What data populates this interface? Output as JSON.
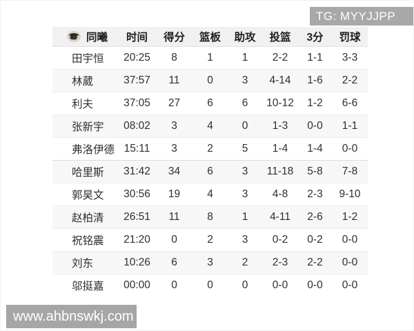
{
  "watermarks": {
    "top_right": "TG: MYYJJPP",
    "bottom_left": "www.ahbnswkj.com"
  },
  "table": {
    "team_label": "同曦",
    "team_logo": "monkey-king-head-logo",
    "columns": [
      "时间",
      "得分",
      "篮板",
      "助攻",
      "投篮",
      "3分",
      "罚球"
    ],
    "rows": [
      [
        "田宇恒",
        "20:25",
        "8",
        "1",
        "1",
        "2-2",
        "1-1",
        "3-3"
      ],
      [
        "林葳",
        "37:57",
        "11",
        "0",
        "3",
        "4-14",
        "1-6",
        "2-2"
      ],
      [
        "利夫",
        "37:05",
        "27",
        "6",
        "6",
        "10-12",
        "1-2",
        "6-6"
      ],
      [
        "张新宇",
        "08:02",
        "3",
        "4",
        "0",
        "1-3",
        "0-0",
        "1-1"
      ],
      [
        "弗洛伊德",
        "15:11",
        "3",
        "2",
        "5",
        "1-4",
        "1-4",
        "0-0"
      ],
      [
        "哈里斯",
        "31:42",
        "34",
        "6",
        "3",
        "11-18",
        "5-8",
        "7-8"
      ],
      [
        "郭昊文",
        "30:56",
        "19",
        "4",
        "3",
        "4-8",
        "2-3",
        "9-10"
      ],
      [
        "赵柏清",
        "26:51",
        "11",
        "8",
        "1",
        "4-11",
        "2-6",
        "1-2"
      ],
      [
        "祝铭震",
        "21:20",
        "0",
        "2",
        "3",
        "0-2",
        "0-2",
        "0-0"
      ],
      [
        "刘东",
        "10:26",
        "6",
        "3",
        "2",
        "2-3",
        "2-2",
        "0-0"
      ],
      [
        "邬挺嘉",
        "00:00",
        "0",
        "0",
        "0",
        "0-0",
        "0-0",
        "0-0"
      ]
    ],
    "bench_divider_row_index": 5
  },
  "colors": {
    "watermark_gray": "#a8a8a8",
    "header_bg": "#f1f1f1",
    "row_alt_bg": "#f7f7f7",
    "text": "#2e2e2e"
  }
}
